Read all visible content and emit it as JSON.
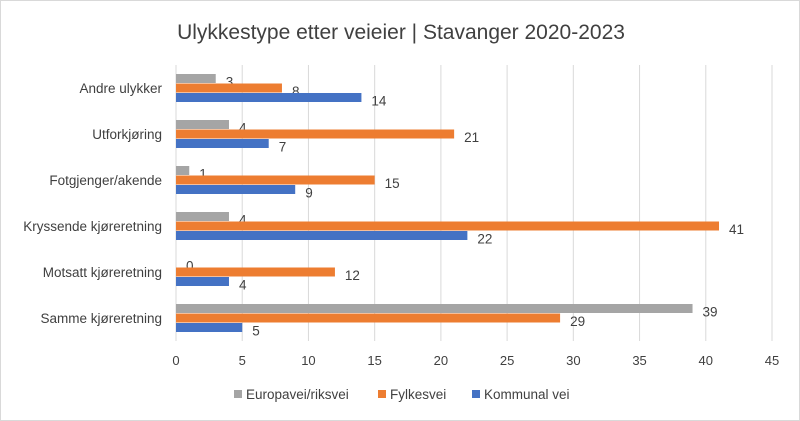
{
  "chart_data": {
    "type": "bar",
    "orientation": "horizontal",
    "title": "Ulykkestype etter veieier | Stavanger 2020-2023",
    "categories": [
      "Andre ulykker",
      "Utforkjøring",
      "Fotgjenger/akende",
      "Kryssende kjøreretning",
      "Motsatt kjøreretning",
      "Samme kjøreretning"
    ],
    "series": [
      {
        "name": "Europavei/riksvei",
        "color": "#a5a5a5",
        "values": [
          3,
          4,
          1,
          4,
          0,
          39
        ]
      },
      {
        "name": "Fylkesvei",
        "color": "#ed7d31",
        "values": [
          8,
          21,
          15,
          41,
          12,
          29
        ]
      },
      {
        "name": "Kommunal vei",
        "color": "#4472c4",
        "values": [
          14,
          7,
          9,
          22,
          4,
          5
        ]
      }
    ],
    "xlim": [
      0,
      45
    ],
    "xticks": [
      0,
      5,
      10,
      15,
      20,
      25,
      30,
      35,
      40,
      45
    ],
    "grid": true,
    "data_labels": true,
    "legend": "bottom"
  }
}
